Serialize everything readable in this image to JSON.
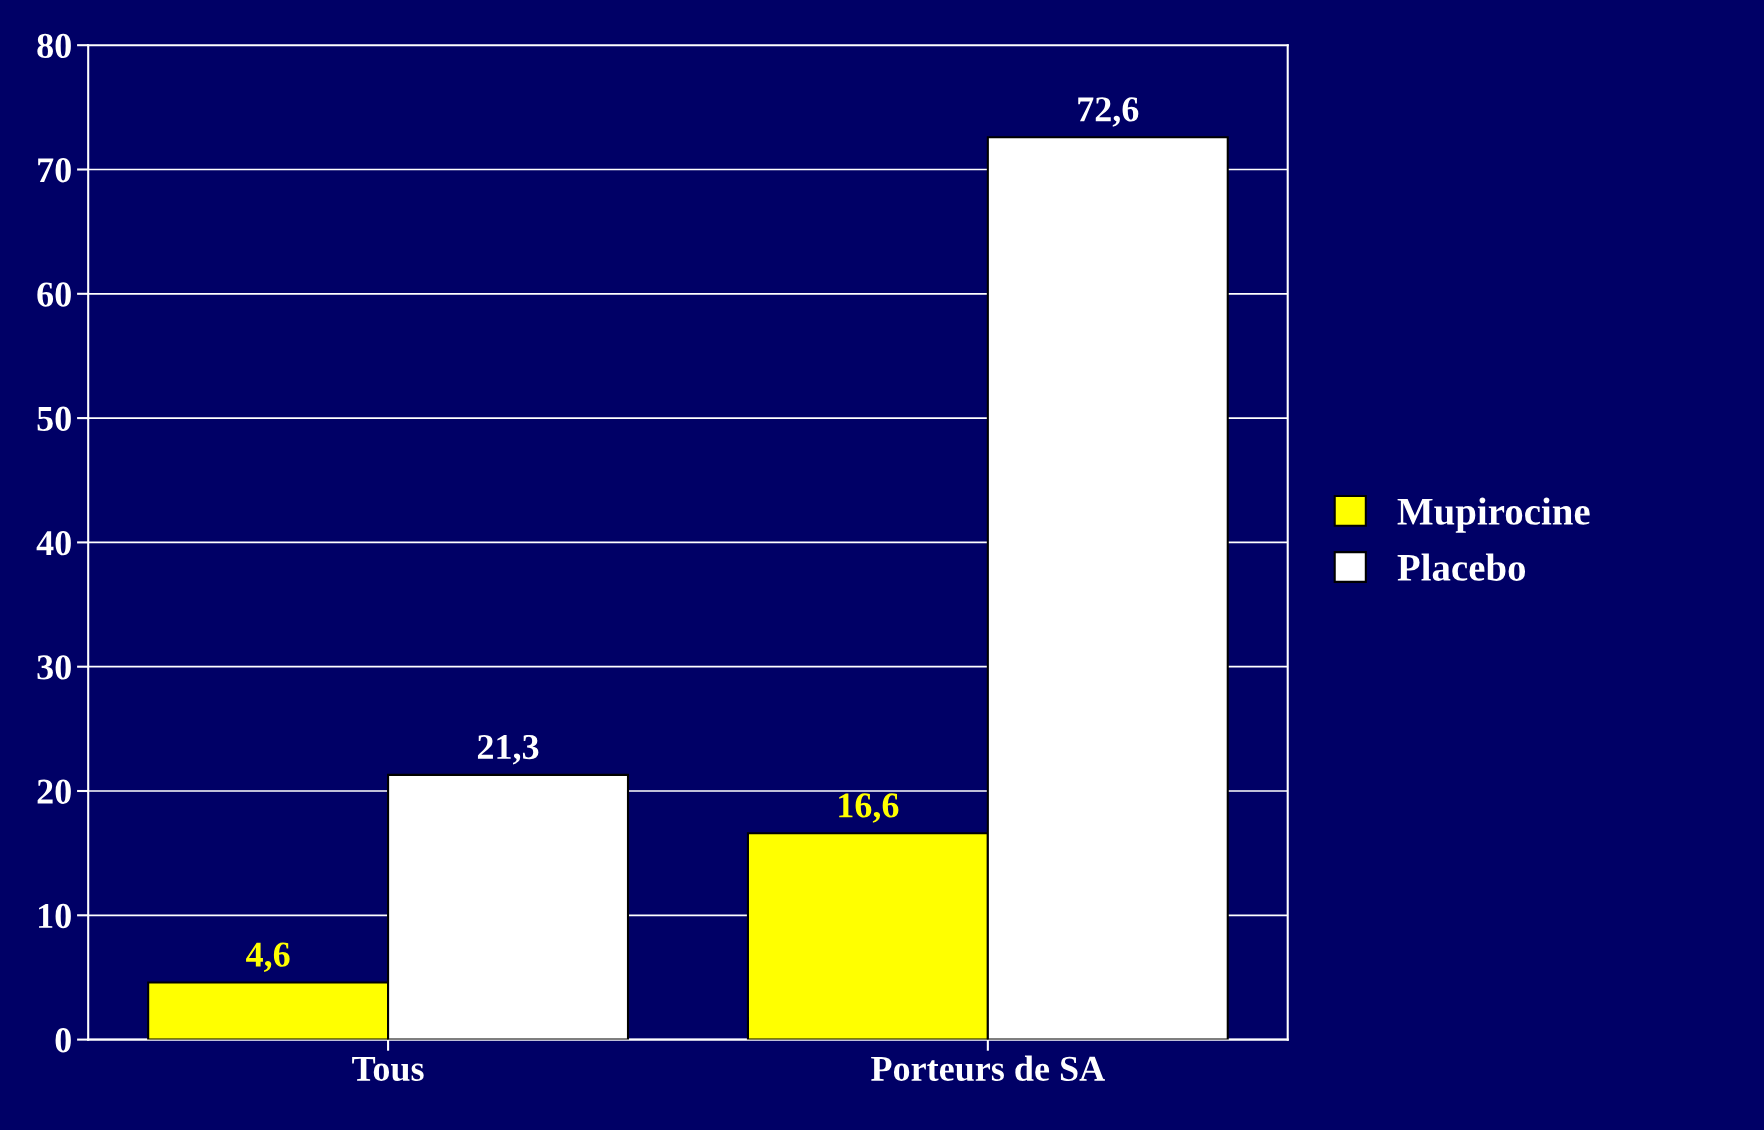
{
  "chart_data": {
    "type": "bar",
    "categories": [
      "Tous",
      "Porteurs de SA"
    ],
    "series": [
      {
        "name": "Mupirocine",
        "color": "#ffff00",
        "values": [
          4.6,
          16.6
        ],
        "value_labels": [
          "4,6",
          "16,6"
        ]
      },
      {
        "name": "Placebo",
        "color": "#ffffff",
        "values": [
          21.3,
          72.6
        ],
        "value_labels": [
          "21,3",
          "72,6"
        ]
      }
    ],
    "ylim": [
      0,
      80
    ],
    "yticks": [
      0,
      10,
      20,
      30,
      40,
      50,
      60,
      70,
      80
    ],
    "grid": "y",
    "legend": "right"
  }
}
